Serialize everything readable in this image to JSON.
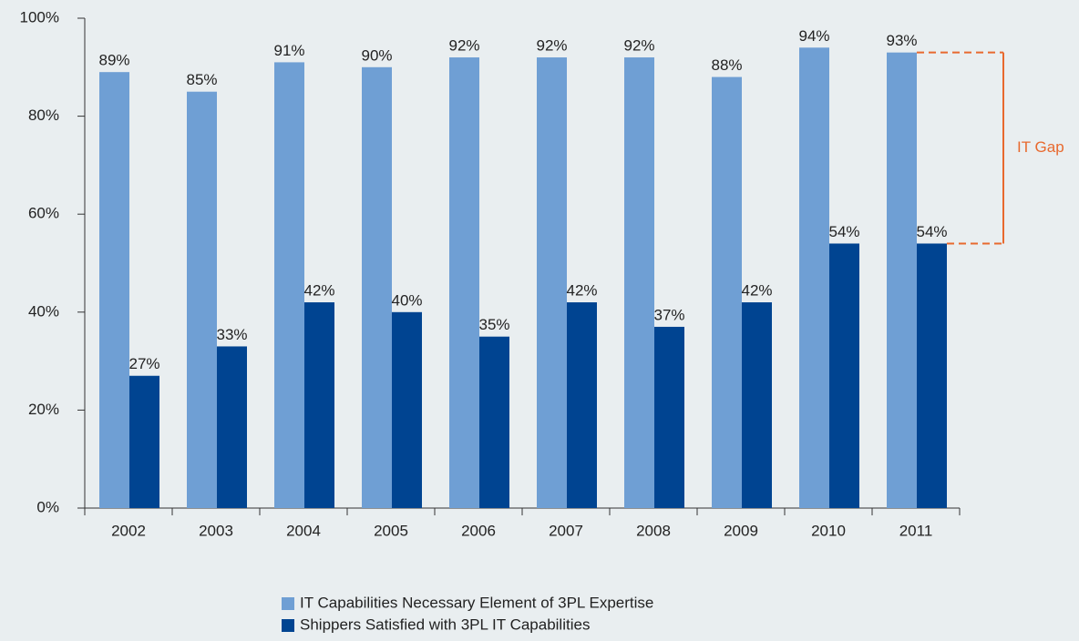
{
  "chart_data": {
    "type": "bar",
    "categories": [
      "2002",
      "2003",
      "2004",
      "2005",
      "2006",
      "2007",
      "2008",
      "2009",
      "2010",
      "2011"
    ],
    "series": [
      {
        "name": "IT Capabilities Necessary Element of 3PL Expertise",
        "color": "#6f9fd4",
        "values": [
          89,
          85,
          91,
          90,
          92,
          92,
          92,
          88,
          94,
          93
        ],
        "value_labels": [
          "89%",
          "85%",
          "91%",
          "90%",
          "92%",
          "92%",
          "92%",
          "88%",
          "94%",
          "93%"
        ]
      },
      {
        "name": "Shippers Satisfied with 3PL IT Capabilities",
        "color": "#004491",
        "values": [
          27,
          33,
          42,
          40,
          35,
          42,
          37,
          42,
          54,
          54
        ],
        "value_labels": [
          "27%",
          "33%",
          "42%",
          "40%",
          "35%",
          "42%",
          "37%",
          "42%",
          "54%",
          "54%"
        ]
      }
    ],
    "ylim": [
      0,
      100
    ],
    "yticks": [
      {
        "value": 0,
        "label": "0%"
      },
      {
        "value": 20,
        "label": "20%"
      },
      {
        "value": 40,
        "label": "40%"
      },
      {
        "value": 60,
        "label": "60%"
      },
      {
        "value": 80,
        "label": "80%"
      },
      {
        "value": 100,
        "label": "100%"
      }
    ],
    "annotation": {
      "text": "IT Gap",
      "color": "#e8692e"
    },
    "legend": "bottom"
  }
}
